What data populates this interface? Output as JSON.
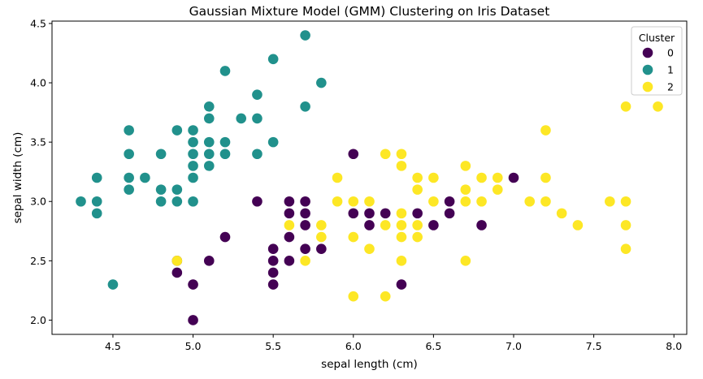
{
  "chart_data": {
    "type": "scatter",
    "title": "Gaussian Mixture Model (GMM) Clustering on Iris Dataset",
    "xlabel": "sepal length (cm)",
    "ylabel": "sepal width (cm)",
    "xlim": [
      4.12,
      8.08
    ],
    "ylim": [
      1.88,
      4.52
    ],
    "xticks": [
      "4.5",
      "5.0",
      "5.5",
      "6.0",
      "6.5",
      "7.0",
      "7.5",
      "8.0"
    ],
    "yticks": [
      "2.0",
      "2.5",
      "3.0",
      "3.5",
      "4.0",
      "4.5"
    ],
    "grid": false,
    "legend": {
      "title": "Cluster",
      "placement": "top-right"
    },
    "series": [
      {
        "name": "0",
        "color": "#440154",
        "points": [
          [
            4.9,
            2.4
          ],
          [
            4.9,
            2.5
          ],
          [
            5.0,
            2.0
          ],
          [
            5.0,
            2.3
          ],
          [
            5.1,
            2.5
          ],
          [
            5.2,
            2.7
          ],
          [
            5.4,
            3.0
          ],
          [
            5.5,
            2.3
          ],
          [
            5.5,
            2.4
          ],
          [
            5.5,
            2.5
          ],
          [
            5.5,
            2.6
          ],
          [
            5.6,
            2.5
          ],
          [
            5.6,
            2.7
          ],
          [
            5.6,
            2.9
          ],
          [
            5.6,
            3.0
          ],
          [
            5.7,
            2.6
          ],
          [
            5.7,
            2.8
          ],
          [
            5.7,
            2.9
          ],
          [
            5.7,
            3.0
          ],
          [
            5.8,
            2.6
          ],
          [
            6.0,
            2.9
          ],
          [
            6.0,
            3.4
          ],
          [
            6.1,
            2.8
          ],
          [
            6.1,
            2.9
          ],
          [
            6.2,
            2.9
          ],
          [
            6.3,
            2.3
          ],
          [
            6.4,
            2.9
          ],
          [
            6.5,
            2.8
          ],
          [
            6.6,
            2.9
          ],
          [
            6.6,
            3.0
          ],
          [
            6.8,
            2.8
          ],
          [
            7.0,
            3.2
          ]
        ]
      },
      {
        "name": "1",
        "color": "#21918c",
        "points": [
          [
            4.3,
            3.0
          ],
          [
            4.4,
            2.9
          ],
          [
            4.4,
            3.0
          ],
          [
            4.4,
            3.2
          ],
          [
            4.5,
            2.3
          ],
          [
            4.6,
            3.1
          ],
          [
            4.6,
            3.2
          ],
          [
            4.6,
            3.4
          ],
          [
            4.6,
            3.6
          ],
          [
            4.7,
            3.2
          ],
          [
            4.8,
            3.0
          ],
          [
            4.8,
            3.1
          ],
          [
            4.8,
            3.4
          ],
          [
            4.9,
            3.0
          ],
          [
            4.9,
            3.1
          ],
          [
            4.9,
            3.6
          ],
          [
            5.0,
            3.0
          ],
          [
            5.0,
            3.2
          ],
          [
            5.0,
            3.3
          ],
          [
            5.0,
            3.4
          ],
          [
            5.0,
            3.5
          ],
          [
            5.0,
            3.6
          ],
          [
            5.1,
            3.3
          ],
          [
            5.1,
            3.4
          ],
          [
            5.1,
            3.5
          ],
          [
            5.1,
            3.7
          ],
          [
            5.1,
            3.8
          ],
          [
            5.2,
            3.4
          ],
          [
            5.2,
            3.5
          ],
          [
            5.2,
            4.1
          ],
          [
            5.3,
            3.7
          ],
          [
            5.4,
            3.4
          ],
          [
            5.4,
            3.7
          ],
          [
            5.4,
            3.9
          ],
          [
            5.5,
            3.5
          ],
          [
            5.5,
            4.2
          ],
          [
            5.7,
            3.8
          ],
          [
            5.7,
            4.4
          ],
          [
            5.8,
            4.0
          ]
        ]
      },
      {
        "name": "2",
        "color": "#fde725",
        "points": [
          [
            4.9,
            2.5
          ],
          [
            5.6,
            2.8
          ],
          [
            5.7,
            2.5
          ],
          [
            5.8,
            2.7
          ],
          [
            5.8,
            2.8
          ],
          [
            5.9,
            3.0
          ],
          [
            5.9,
            3.2
          ],
          [
            6.0,
            2.2
          ],
          [
            6.0,
            2.7
          ],
          [
            6.0,
            3.0
          ],
          [
            6.1,
            2.6
          ],
          [
            6.1,
            3.0
          ],
          [
            6.2,
            2.2
          ],
          [
            6.2,
            2.8
          ],
          [
            6.2,
            3.4
          ],
          [
            6.3,
            2.5
          ],
          [
            6.3,
            2.7
          ],
          [
            6.3,
            2.8
          ],
          [
            6.3,
            2.9
          ],
          [
            6.3,
            3.3
          ],
          [
            6.3,
            3.4
          ],
          [
            6.4,
            2.7
          ],
          [
            6.4,
            2.8
          ],
          [
            6.4,
            3.1
          ],
          [
            6.4,
            3.2
          ],
          [
            6.5,
            3.0
          ],
          [
            6.5,
            3.2
          ],
          [
            6.7,
            2.5
          ],
          [
            6.7,
            3.0
          ],
          [
            6.7,
            3.1
          ],
          [
            6.7,
            3.3
          ],
          [
            6.8,
            3.0
          ],
          [
            6.8,
            3.2
          ],
          [
            6.9,
            3.1
          ],
          [
            6.9,
            3.2
          ],
          [
            7.1,
            3.0
          ],
          [
            7.2,
            3.0
          ],
          [
            7.2,
            3.2
          ],
          [
            7.2,
            3.6
          ],
          [
            7.3,
            2.9
          ],
          [
            7.4,
            2.8
          ],
          [
            7.6,
            3.0
          ],
          [
            7.7,
            2.6
          ],
          [
            7.7,
            2.8
          ],
          [
            7.7,
            3.0
          ],
          [
            7.7,
            3.8
          ],
          [
            7.9,
            3.8
          ]
        ]
      }
    ]
  }
}
